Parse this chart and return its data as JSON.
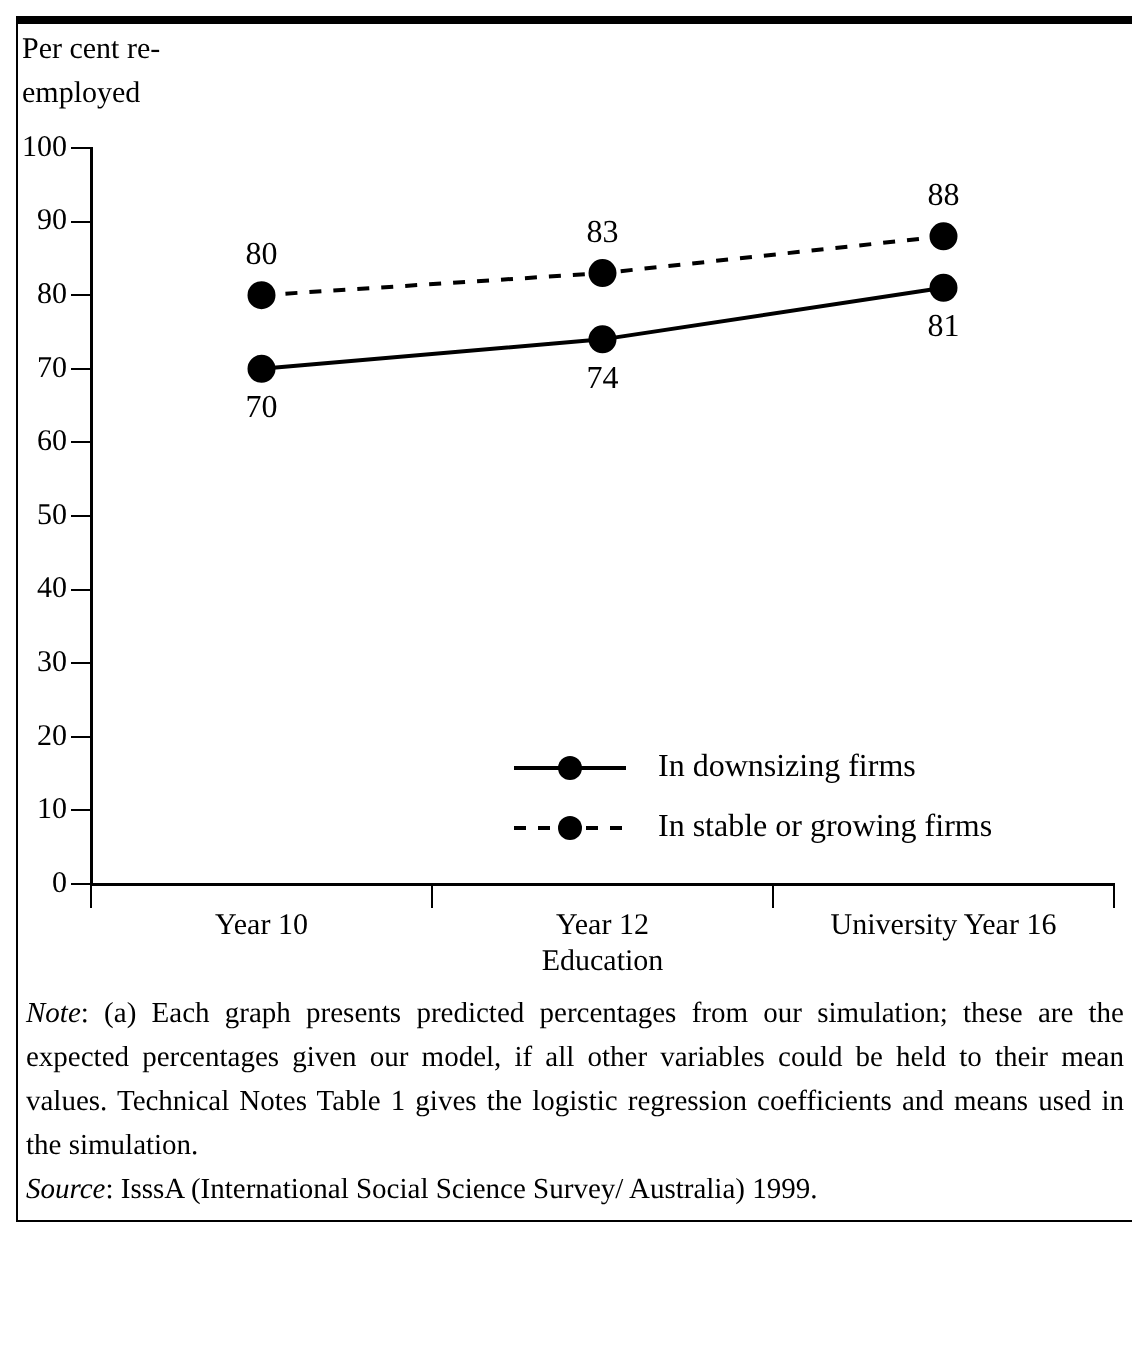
{
  "chart_data": {
    "type": "line",
    "ylabel": "Per cent re-employed",
    "xlabel": "Education",
    "categories": [
      "Year 10",
      "Year 12",
      "University Year 16"
    ],
    "series": [
      {
        "name": "In downsizing firms",
        "color": "#000000",
        "values": [
          70,
          74,
          81
        ],
        "line_style": "solid"
      },
      {
        "name": "In stable or growing firms",
        "color": "#000000",
        "values": [
          80,
          83,
          88
        ],
        "line_style": "dashed"
      }
    ],
    "ylim": [
      0,
      100
    ],
    "yticks": [
      0,
      10,
      20,
      30,
      40,
      50,
      60,
      70,
      80,
      90,
      100
    ],
    "grid": false,
    "legend": "bottom right",
    "marker": "circle",
    "data_labels": true,
    "annotations": [
      "Note: (a) Each graph presents predicted percentages from our simulation; these are the expected percentages given our model, if all other variables could be held to their mean values. Technical Notes Table 1 gives the logistic regression coefficients and means used in the simulation.",
      "Source: IsssA (International Social Science Survey/ Australia) 1999."
    ]
  }
}
